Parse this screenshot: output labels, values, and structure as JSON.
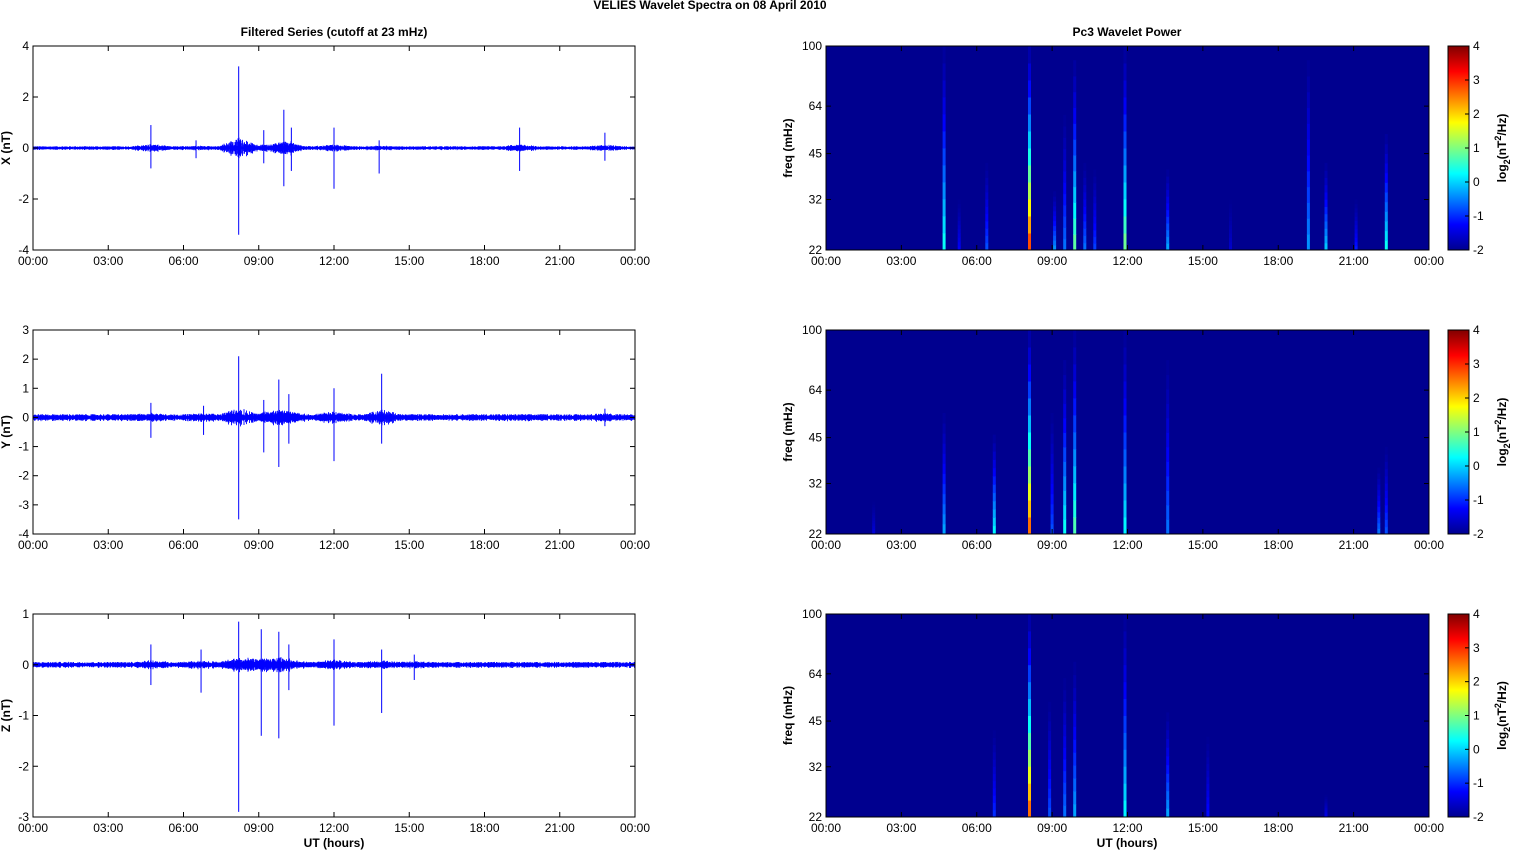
{
  "figure_title": "VELIES Wavelet Spectra on 08 April     2010",
  "left_column_title": "Filtered Series (cutoff at 23 mHz)",
  "right_column_title": "Pc3 Wavelet Power",
  "x_label": "UT (hours)",
  "colorbar_label": "log2(nT2/Hz)",
  "colors": {
    "trace": "#0000ff",
    "spectrogram_background": "#00008f"
  },
  "chart_data": [
    {
      "type": "line",
      "ylabel": "X (nT)",
      "xlim": [
        0,
        24
      ],
      "ylim": [
        -4,
        4
      ],
      "x_tick_labels": [
        "00:00",
        "03:00",
        "06:00",
        "09:00",
        "12:00",
        "15:00",
        "18:00",
        "21:00",
        "00:00"
      ],
      "y_tick_labels": [
        "4",
        "2",
        "0",
        "-2",
        "-4"
      ],
      "baseline_noise": 0.05,
      "spikes": [
        {
          "x": 4.7,
          "high": 0.9,
          "low": -0.8
        },
        {
          "x": 6.5,
          "high": 0.3,
          "low": -0.4
        },
        {
          "x": 8.2,
          "high": 3.2,
          "low": -3.4
        },
        {
          "x": 9.2,
          "high": 0.7,
          "low": -0.6
        },
        {
          "x": 10.0,
          "high": 1.5,
          "low": -1.5
        },
        {
          "x": 10.3,
          "high": 0.8,
          "low": -0.9
        },
        {
          "x": 12.0,
          "high": 0.8,
          "low": -1.6
        },
        {
          "x": 13.8,
          "high": 0.3,
          "low": -1.0
        },
        {
          "x": 19.4,
          "high": 0.8,
          "low": -0.9
        },
        {
          "x": 22.8,
          "high": 0.6,
          "low": -0.5
        }
      ]
    },
    {
      "type": "line",
      "ylabel": "Y (nT)",
      "xlim": [
        0,
        24
      ],
      "ylim": [
        -4,
        3
      ],
      "x_tick_labels": [
        "00:00",
        "03:00",
        "06:00",
        "09:00",
        "12:00",
        "15:00",
        "18:00",
        "21:00",
        "00:00"
      ],
      "y_tick_labels": [
        "3",
        "2",
        "1",
        "0",
        "-1",
        "-2",
        "-3",
        "-4"
      ],
      "baseline_noise": 0.08,
      "spikes": [
        {
          "x": 4.7,
          "high": 0.5,
          "low": -0.7
        },
        {
          "x": 6.8,
          "high": 0.4,
          "low": -0.6
        },
        {
          "x": 8.2,
          "high": 2.1,
          "low": -3.5
        },
        {
          "x": 9.2,
          "high": 0.6,
          "low": -1.2
        },
        {
          "x": 9.8,
          "high": 1.3,
          "low": -1.7
        },
        {
          "x": 10.2,
          "high": 0.8,
          "low": -0.9
        },
        {
          "x": 12.0,
          "high": 1.0,
          "low": -1.5
        },
        {
          "x": 13.9,
          "high": 1.5,
          "low": -0.9
        },
        {
          "x": 22.8,
          "high": 0.3,
          "low": -0.3
        }
      ]
    },
    {
      "type": "line",
      "ylabel": "Z (nT)",
      "xlim": [
        0,
        24
      ],
      "ylim": [
        -3,
        1
      ],
      "x_tick_labels": [
        "00:00",
        "03:00",
        "06:00",
        "09:00",
        "12:00",
        "15:00",
        "18:00",
        "21:00",
        "00:00"
      ],
      "y_tick_labels": [
        "1",
        "0",
        "-1",
        "-2",
        "-3"
      ],
      "baseline_noise": 0.04,
      "spikes": [
        {
          "x": 4.7,
          "high": 0.4,
          "low": -0.4
        },
        {
          "x": 6.7,
          "high": 0.3,
          "low": -0.55
        },
        {
          "x": 8.2,
          "high": 0.85,
          "low": -2.9
        },
        {
          "x": 9.1,
          "high": 0.7,
          "low": -1.4
        },
        {
          "x": 9.8,
          "high": 0.65,
          "low": -1.45
        },
        {
          "x": 10.2,
          "high": 0.4,
          "low": -0.5
        },
        {
          "x": 12.0,
          "high": 0.5,
          "low": -1.2
        },
        {
          "x": 13.9,
          "high": 0.3,
          "low": -0.95
        },
        {
          "x": 15.2,
          "high": 0.2,
          "low": -0.3
        }
      ]
    },
    {
      "type": "heatmap",
      "ylabel": "freq (mHz)",
      "xlim": [
        0,
        24
      ],
      "ylim": [
        22,
        100
      ],
      "y_scale": "log",
      "x_tick_labels": [
        "00:00",
        "03:00",
        "06:00",
        "09:00",
        "12:00",
        "15:00",
        "18:00",
        "21:00",
        "00:00"
      ],
      "y_ticks": [
        100,
        64,
        45,
        32,
        22
      ],
      "colorbar_ticks": [
        4,
        3,
        2,
        1,
        0,
        -1,
        -2
      ],
      "colorbar_range": [
        -2,
        4
      ],
      "streaks": [
        {
          "x": 4.7,
          "fmax": 100,
          "peak": 0.3
        },
        {
          "x": 5.3,
          "fmax": 32,
          "peak": -1.3
        },
        {
          "x": 6.4,
          "fmax": 42,
          "peak": -0.8
        },
        {
          "x": 8.1,
          "fmax": 100,
          "peak": 2.8
        },
        {
          "x": 9.1,
          "fmax": 34,
          "peak": -0.4
        },
        {
          "x": 9.5,
          "fmax": 60,
          "peak": -0.6
        },
        {
          "x": 9.9,
          "fmax": 90,
          "peak": 0.8
        },
        {
          "x": 10.3,
          "fmax": 42,
          "peak": -0.6
        },
        {
          "x": 10.7,
          "fmax": 40,
          "peak": -0.9
        },
        {
          "x": 11.9,
          "fmax": 100,
          "peak": 0.9
        },
        {
          "x": 13.6,
          "fmax": 40,
          "peak": -0.3
        },
        {
          "x": 16.1,
          "fmax": 32,
          "peak": -1.6
        },
        {
          "x": 19.2,
          "fmax": 90,
          "peak": -0.4
        },
        {
          "x": 19.9,
          "fmax": 42,
          "peak": -0.1
        },
        {
          "x": 21.1,
          "fmax": 32,
          "peak": -1.1
        },
        {
          "x": 22.3,
          "fmax": 52,
          "peak": 0.3
        }
      ]
    },
    {
      "type": "heatmap",
      "ylabel": "freq (mHz)",
      "xlim": [
        0,
        24
      ],
      "ylim": [
        22,
        100
      ],
      "y_scale": "log",
      "x_tick_labels": [
        "00:00",
        "03:00",
        "06:00",
        "09:00",
        "12:00",
        "15:00",
        "18:00",
        "21:00",
        "00:00"
      ],
      "y_ticks": [
        100,
        64,
        45,
        32,
        22
      ],
      "colorbar_ticks": [
        4,
        3,
        2,
        1,
        0,
        -1,
        -2
      ],
      "colorbar_range": [
        -2,
        4
      ],
      "streaks": [
        {
          "x": 1.9,
          "fmax": 28,
          "peak": -1.5
        },
        {
          "x": 4.7,
          "fmax": 54,
          "peak": -0.3
        },
        {
          "x": 6.7,
          "fmax": 46,
          "peak": 0.2
        },
        {
          "x": 8.1,
          "fmax": 100,
          "peak": 2.6
        },
        {
          "x": 9.0,
          "fmax": 54,
          "peak": -0.8
        },
        {
          "x": 9.5,
          "fmax": 80,
          "peak": 0.3
        },
        {
          "x": 9.9,
          "fmax": 100,
          "peak": 0.7
        },
        {
          "x": 11.9,
          "fmax": 100,
          "peak": 0.2
        },
        {
          "x": 13.6,
          "fmax": 80,
          "peak": -0.6
        },
        {
          "x": 22.0,
          "fmax": 36,
          "peak": -0.6
        },
        {
          "x": 22.3,
          "fmax": 42,
          "peak": -0.8
        }
      ]
    },
    {
      "type": "heatmap",
      "ylabel": "freq (mHz)",
      "xlim": [
        0,
        24
      ],
      "ylim": [
        22,
        100
      ],
      "y_scale": "log",
      "x_tick_labels": [
        "00:00",
        "03:00",
        "06:00",
        "09:00",
        "12:00",
        "15:00",
        "18:00",
        "21:00",
        "00:00"
      ],
      "y_ticks": [
        100,
        64,
        45,
        32,
        22
      ],
      "colorbar_ticks": [
        4,
        3,
        2,
        1,
        0,
        -1,
        -2
      ],
      "colorbar_range": [
        -2,
        4
      ],
      "streaks": [
        {
          "x": 6.7,
          "fmax": 42,
          "peak": -1.0
        },
        {
          "x": 8.1,
          "fmax": 100,
          "peak": 2.6
        },
        {
          "x": 8.9,
          "fmax": 52,
          "peak": -0.8
        },
        {
          "x": 9.5,
          "fmax": 62,
          "peak": -0.6
        },
        {
          "x": 9.9,
          "fmax": 70,
          "peak": -0.3
        },
        {
          "x": 11.9,
          "fmax": 100,
          "peak": 0.2
        },
        {
          "x": 13.6,
          "fmax": 48,
          "peak": -0.3
        },
        {
          "x": 15.2,
          "fmax": 40,
          "peak": -1.2
        },
        {
          "x": 19.9,
          "fmax": 26,
          "peak": -1.4
        }
      ]
    }
  ]
}
